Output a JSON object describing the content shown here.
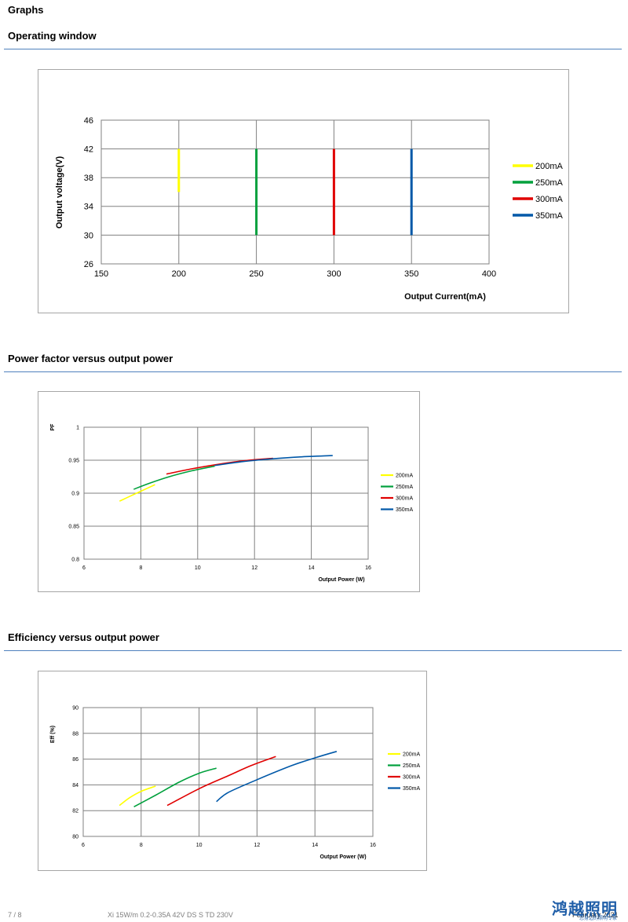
{
  "header": {
    "title": "Graphs"
  },
  "sections": [
    {
      "title": "Operating window"
    },
    {
      "title": "Power factor versus output power"
    },
    {
      "title": "Efficiency versus output power"
    }
  ],
  "colors": {
    "200mA": "#ffff00",
    "250mA": "#00a03c",
    "300mA": "#e00000",
    "350mA": "#0058a8",
    "rule": "#4f81bd"
  },
  "chart_data": [
    {
      "type": "line",
      "title": "",
      "xlabel": "Output Current(mA)",
      "ylabel": "Output voltage(V)",
      "xlim": [
        150,
        400
      ],
      "ylim": [
        26,
        46
      ],
      "xticks": [
        150,
        200,
        250,
        300,
        350,
        400
      ],
      "yticks": [
        26,
        30,
        34,
        38,
        42,
        46
      ],
      "grid": true,
      "legend": "right",
      "series": [
        {
          "name": "200mA",
          "x": [
            200,
            200
          ],
          "y": [
            36,
            42
          ]
        },
        {
          "name": "250mA",
          "x": [
            250,
            250
          ],
          "y": [
            30,
            42
          ]
        },
        {
          "name": "300mA",
          "x": [
            300,
            300
          ],
          "y": [
            30,
            42
          ]
        },
        {
          "name": "350mA",
          "x": [
            350,
            350
          ],
          "y": [
            30,
            42
          ]
        }
      ]
    },
    {
      "type": "line",
      "title": "",
      "xlabel": "Output Power (W)",
      "ylabel": "PF",
      "xlim": [
        6,
        16
      ],
      "ylim": [
        0.8,
        1
      ],
      "xticks": [
        6,
        8,
        10,
        12,
        14,
        16
      ],
      "yticks": [
        0.8,
        0.85,
        0.9,
        0.95,
        1
      ],
      "grid": true,
      "legend": "right",
      "series": [
        {
          "name": "200mA",
          "x": [
            7.25,
            7.6,
            8.0,
            8.5
          ],
          "y": [
            0.888,
            0.895,
            0.903,
            0.913
          ]
        },
        {
          "name": "250mA",
          "x": [
            7.75,
            8.3,
            9.0,
            9.8,
            10.6
          ],
          "y": [
            0.906,
            0.915,
            0.925,
            0.934,
            0.941
          ]
        },
        {
          "name": "300mA",
          "x": [
            8.9,
            9.8,
            10.6,
            11.6,
            12.65
          ],
          "y": [
            0.929,
            0.937,
            0.943,
            0.949,
            0.953
          ]
        },
        {
          "name": "350mA",
          "x": [
            10.6,
            11.6,
            12.6,
            13.6,
            14.75
          ],
          "y": [
            0.942,
            0.948,
            0.952,
            0.955,
            0.957
          ]
        }
      ]
    },
    {
      "type": "line",
      "title": "",
      "xlabel": "Output Power (W)",
      "ylabel": "Eff (%)",
      "xlim": [
        6,
        16
      ],
      "ylim": [
        80,
        90
      ],
      "xticks": [
        6,
        8,
        10,
        12,
        14,
        16
      ],
      "yticks": [
        80,
        82,
        84,
        86,
        88,
        90
      ],
      "grid": true,
      "legend": "right",
      "series": [
        {
          "name": "200mA",
          "x": [
            7.25,
            7.6,
            8.0,
            8.5
          ],
          "y": [
            82.4,
            83.0,
            83.5,
            83.9
          ]
        },
        {
          "name": "250mA",
          "x": [
            7.75,
            8.5,
            9.3,
            10.0,
            10.6
          ],
          "y": [
            82.3,
            83.2,
            84.2,
            84.9,
            85.3
          ]
        },
        {
          "name": "300mA",
          "x": [
            8.9,
            10.0,
            11.0,
            11.8,
            12.65
          ],
          "y": [
            82.4,
            83.7,
            84.7,
            85.5,
            86.2
          ]
        },
        {
          "name": "350mA",
          "x": [
            10.6,
            11.0,
            12.0,
            13.2,
            14.0,
            14.75
          ],
          "y": [
            82.7,
            83.4,
            84.4,
            85.5,
            86.1,
            86.6
          ]
        }
      ]
    }
  ],
  "footer": {
    "page": "7 / 8",
    "document": "Xi 15W/m 0.2-0.35A 42V DS S TD 230V",
    "logo": "鸿越照明",
    "logo_sub": "您身边的照明专家",
    "date": "February 2021"
  }
}
